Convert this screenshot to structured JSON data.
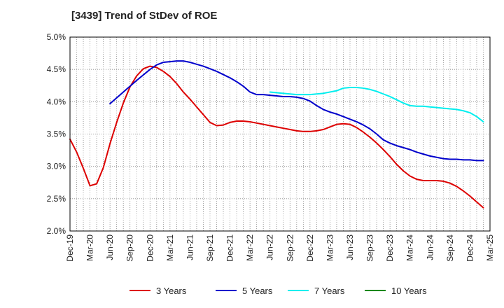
{
  "chart_data": {
    "type": "line",
    "title": "[3439]  Trend of StDev of ROE",
    "xlabel": "",
    "ylabel": "",
    "x_ticks": [
      "Dec-19",
      "Mar-20",
      "Jun-20",
      "Sep-20",
      "Dec-20",
      "Mar-21",
      "Jun-21",
      "Sep-21",
      "Dec-21",
      "Mar-22",
      "Jun-22",
      "Sep-22",
      "Dec-22",
      "Mar-23",
      "Jun-23",
      "Sep-23",
      "Dec-23",
      "Mar-24",
      "Jun-24",
      "Sep-24",
      "Dec-24",
      "Mar-25"
    ],
    "y_ticks": [
      "2.0%",
      "2.5%",
      "3.0%",
      "3.5%",
      "4.0%",
      "4.5%",
      "5.0%"
    ],
    "ylim": [
      2.0,
      5.0
    ],
    "y_unit": "%",
    "grid": true,
    "legend_position": "bottom",
    "series": [
      {
        "name": "3 Years",
        "color": "#dd0000",
        "points": [
          [
            "Dec-19",
            3.42
          ],
          [
            "Jan-20",
            3.22
          ],
          [
            "Feb-20",
            2.97
          ],
          [
            "Mar-20",
            2.7
          ],
          [
            "Apr-20",
            2.73
          ],
          [
            "May-20",
            2.98
          ],
          [
            "Jun-20",
            3.35
          ],
          [
            "Jul-20",
            3.68
          ],
          [
            "Aug-20",
            3.98
          ],
          [
            "Sep-20",
            4.23
          ],
          [
            "Oct-20",
            4.4
          ],
          [
            "Nov-20",
            4.51
          ],
          [
            "Dec-20",
            4.55
          ],
          [
            "Jan-21",
            4.53
          ],
          [
            "Feb-21",
            4.47
          ],
          [
            "Mar-21",
            4.39
          ],
          [
            "Apr-21",
            4.28
          ],
          [
            "May-21",
            4.15
          ],
          [
            "Jun-21",
            4.04
          ],
          [
            "Jul-21",
            3.92
          ],
          [
            "Aug-21",
            3.8
          ],
          [
            "Sep-21",
            3.68
          ],
          [
            "Oct-21",
            3.63
          ],
          [
            "Nov-21",
            3.64
          ],
          [
            "Dec-21",
            3.68
          ],
          [
            "Jan-22",
            3.7
          ],
          [
            "Feb-22",
            3.7
          ],
          [
            "Mar-22",
            3.69
          ],
          [
            "Apr-22",
            3.67
          ],
          [
            "May-22",
            3.65
          ],
          [
            "Jun-22",
            3.63
          ],
          [
            "Jul-22",
            3.61
          ],
          [
            "Aug-22",
            3.59
          ],
          [
            "Sep-22",
            3.57
          ],
          [
            "Oct-22",
            3.55
          ],
          [
            "Nov-22",
            3.54
          ],
          [
            "Dec-22",
            3.54
          ],
          [
            "Jan-23",
            3.55
          ],
          [
            "Feb-23",
            3.57
          ],
          [
            "Mar-23",
            3.61
          ],
          [
            "Apr-23",
            3.65
          ],
          [
            "May-23",
            3.66
          ],
          [
            "Jun-23",
            3.65
          ],
          [
            "Jul-23",
            3.6
          ],
          [
            "Aug-23",
            3.53
          ],
          [
            "Sep-23",
            3.45
          ],
          [
            "Oct-23",
            3.36
          ],
          [
            "Nov-23",
            3.26
          ],
          [
            "Dec-23",
            3.15
          ],
          [
            "Jan-24",
            3.03
          ],
          [
            "Feb-24",
            2.93
          ],
          [
            "Mar-24",
            2.85
          ],
          [
            "Apr-24",
            2.8
          ],
          [
            "May-24",
            2.78
          ],
          [
            "Jun-24",
            2.78
          ],
          [
            "Jul-24",
            2.78
          ],
          [
            "Aug-24",
            2.77
          ],
          [
            "Sep-24",
            2.74
          ],
          [
            "Oct-24",
            2.69
          ],
          [
            "Nov-24",
            2.62
          ],
          [
            "Dec-24",
            2.54
          ],
          [
            "Jan-25",
            2.45
          ],
          [
            "Feb-25",
            2.36
          ]
        ]
      },
      {
        "name": "5 Years",
        "color": "#0000cc",
        "points": [
          [
            "Jun-20",
            3.97
          ],
          [
            "Aug-20",
            4.15
          ],
          [
            "Oct-20",
            4.33
          ],
          [
            "Dec-20",
            4.5
          ],
          [
            "Jan-21",
            4.57
          ],
          [
            "Feb-21",
            4.61
          ],
          [
            "Mar-21",
            4.62
          ],
          [
            "Apr-21",
            4.63
          ],
          [
            "May-21",
            4.63
          ],
          [
            "Jun-21",
            4.61
          ],
          [
            "Jul-21",
            4.58
          ],
          [
            "Aug-21",
            4.55
          ],
          [
            "Sep-21",
            4.51
          ],
          [
            "Oct-21",
            4.47
          ],
          [
            "Nov-21",
            4.42
          ],
          [
            "Dec-21",
            4.37
          ],
          [
            "Jan-22",
            4.31
          ],
          [
            "Feb-22",
            4.24
          ],
          [
            "Mar-22",
            4.15
          ],
          [
            "Apr-22",
            4.11
          ],
          [
            "May-22",
            4.11
          ],
          [
            "Jun-22",
            4.1
          ],
          [
            "Jul-22",
            4.09
          ],
          [
            "Aug-22",
            4.08
          ],
          [
            "Sep-22",
            4.08
          ],
          [
            "Oct-22",
            4.07
          ],
          [
            "Nov-22",
            4.05
          ],
          [
            "Dec-22",
            4.01
          ],
          [
            "Jan-23",
            3.94
          ],
          [
            "Feb-23",
            3.88
          ],
          [
            "Mar-23",
            3.84
          ],
          [
            "Apr-23",
            3.81
          ],
          [
            "May-23",
            3.77
          ],
          [
            "Jun-23",
            3.73
          ],
          [
            "Jul-23",
            3.69
          ],
          [
            "Aug-23",
            3.64
          ],
          [
            "Sep-23",
            3.58
          ],
          [
            "Oct-23",
            3.5
          ],
          [
            "Nov-23",
            3.41
          ],
          [
            "Dec-23",
            3.36
          ],
          [
            "Jan-24",
            3.32
          ],
          [
            "Feb-24",
            3.29
          ],
          [
            "Mar-24",
            3.26
          ],
          [
            "Apr-24",
            3.22
          ],
          [
            "May-24",
            3.19
          ],
          [
            "Jun-24",
            3.16
          ],
          [
            "Jul-24",
            3.14
          ],
          [
            "Aug-24",
            3.12
          ],
          [
            "Sep-24",
            3.11
          ],
          [
            "Oct-24",
            3.11
          ],
          [
            "Nov-24",
            3.1
          ],
          [
            "Dec-24",
            3.1
          ],
          [
            "Jan-25",
            3.09
          ],
          [
            "Feb-25",
            3.09
          ]
        ]
      },
      {
        "name": "7 Years",
        "color": "#00eeee",
        "points": [
          [
            "Jun-22",
            4.15
          ],
          [
            "Aug-22",
            4.13
          ],
          [
            "Oct-22",
            4.11
          ],
          [
            "Dec-22",
            4.11
          ],
          [
            "Feb-23",
            4.13
          ],
          [
            "Apr-23",
            4.17
          ],
          [
            "May-23",
            4.21
          ],
          [
            "Jun-23",
            4.22
          ],
          [
            "Jul-23",
            4.22
          ],
          [
            "Aug-23",
            4.21
          ],
          [
            "Sep-23",
            4.19
          ],
          [
            "Oct-23",
            4.16
          ],
          [
            "Nov-23",
            4.12
          ],
          [
            "Dec-23",
            4.08
          ],
          [
            "Jan-24",
            4.03
          ],
          [
            "Feb-24",
            3.98
          ],
          [
            "Mar-24",
            3.94
          ],
          [
            "Apr-24",
            3.93
          ],
          [
            "May-24",
            3.93
          ],
          [
            "Jun-24",
            3.92
          ],
          [
            "Jul-24",
            3.91
          ],
          [
            "Aug-24",
            3.9
          ],
          [
            "Sep-24",
            3.89
          ],
          [
            "Oct-24",
            3.88
          ],
          [
            "Nov-24",
            3.86
          ],
          [
            "Dec-24",
            3.83
          ],
          [
            "Jan-25",
            3.77
          ],
          [
            "Feb-25",
            3.69
          ]
        ]
      },
      {
        "name": "10 Years",
        "color": "#008800",
        "points": []
      }
    ]
  }
}
